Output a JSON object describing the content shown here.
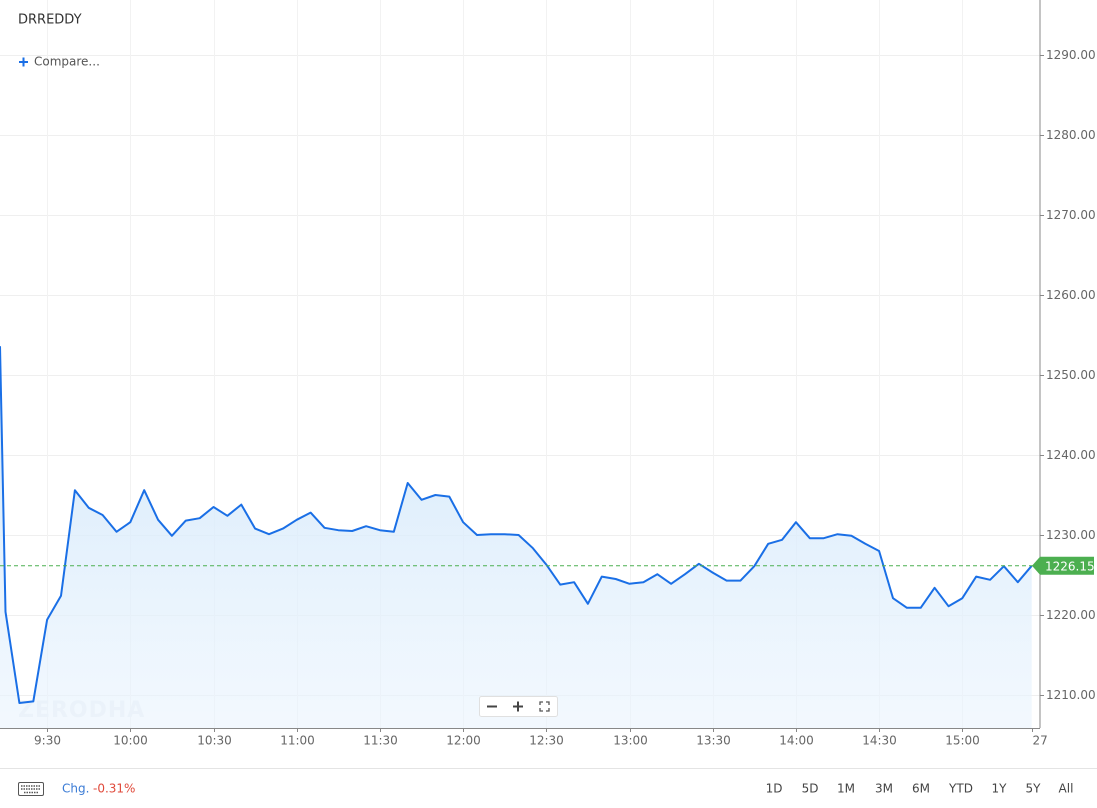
{
  "header": {
    "symbol": "DRREDDY",
    "compare": "Compare..."
  },
  "chart_data": {
    "type": "area",
    "watermark": "ZERODHA",
    "color": "#1a6fe6",
    "grid": true,
    "last_price": 1226.15,
    "last_price_color": "#4caf50",
    "xlim": [
      553,
      928
    ],
    "ylim": [
      1205.875,
      1296.875
    ],
    "xticks": [
      {
        "value": 570,
        "label": "9:30"
      },
      {
        "value": 600,
        "label": "10:00"
      },
      {
        "value": 630,
        "label": "10:30"
      },
      {
        "value": 660,
        "label": "11:00"
      },
      {
        "value": 690,
        "label": "11:30"
      },
      {
        "value": 720,
        "label": "12:00"
      },
      {
        "value": 750,
        "label": "12:30"
      },
      {
        "value": 780,
        "label": "13:00"
      },
      {
        "value": 810,
        "label": "13:30"
      },
      {
        "value": 840,
        "label": "14:00"
      },
      {
        "value": 870,
        "label": "14:30"
      },
      {
        "value": 900,
        "label": "15:00"
      },
      {
        "value": 925,
        "label": "27"
      }
    ],
    "yticks": [
      {
        "value": 1210,
        "label": "1210.00"
      },
      {
        "value": 1220,
        "label": "1220.00"
      },
      {
        "value": 1230,
        "label": "1230.00"
      },
      {
        "value": 1240,
        "label": "1240.00"
      },
      {
        "value": 1250,
        "label": "1250.00"
      },
      {
        "value": 1260,
        "label": "1260.00"
      },
      {
        "value": 1270,
        "label": "1270.00"
      },
      {
        "value": 1280,
        "label": "1280.00"
      },
      {
        "value": 1290,
        "label": "1290.00"
      }
    ],
    "x": [
      553,
      555,
      560,
      565,
      570,
      575,
      580,
      585,
      590,
      595,
      600,
      605,
      610,
      615,
      620,
      625,
      630,
      635,
      640,
      645,
      650,
      655,
      660,
      665,
      670,
      675,
      680,
      685,
      690,
      695,
      700,
      705,
      710,
      715,
      720,
      725,
      730,
      735,
      740,
      745,
      750,
      755,
      760,
      765,
      770,
      775,
      780,
      785,
      790,
      795,
      800,
      805,
      810,
      815,
      820,
      825,
      830,
      835,
      840,
      845,
      850,
      855,
      860,
      865,
      870,
      875,
      880,
      885,
      890,
      895,
      900,
      905,
      910,
      915,
      920,
      925
    ],
    "values": [
      1253.6,
      1220.4,
      1209.0,
      1209.2,
      1219.4,
      1222.4,
      1235.6,
      1233.4,
      1232.5,
      1230.4,
      1231.6,
      1235.6,
      1231.9,
      1229.9,
      1231.8,
      1232.1,
      1233.5,
      1232.4,
      1233.8,
      1230.8,
      1230.1,
      1230.8,
      1231.9,
      1232.8,
      1230.9,
      1230.6,
      1230.5,
      1231.1,
      1230.6,
      1230.4,
      1236.5,
      1234.4,
      1235.0,
      1234.8,
      1231.6,
      1230.0,
      1230.1,
      1230.1,
      1230.0,
      1228.4,
      1226.3,
      1223.8,
      1224.1,
      1221.4,
      1224.8,
      1224.5,
      1223.9,
      1224.1,
      1225.1,
      1223.9,
      1225.1,
      1226.4,
      1225.3,
      1224.3,
      1224.3,
      1226.1,
      1228.9,
      1229.4,
      1231.6,
      1229.6,
      1229.6,
      1230.1,
      1229.9,
      1228.9,
      1228.0,
      1222.1,
      1220.9,
      1220.9,
      1223.4,
      1221.1,
      1222.1,
      1224.8,
      1224.4,
      1226.1,
      1224.1,
      1226.15
    ]
  },
  "footer": {
    "change_label": "Chg.",
    "change": "-0.31%",
    "ranges": [
      "1D",
      "5D",
      "1M",
      "3M",
      "6M",
      "YTD",
      "1Y",
      "5Y",
      "All"
    ]
  }
}
